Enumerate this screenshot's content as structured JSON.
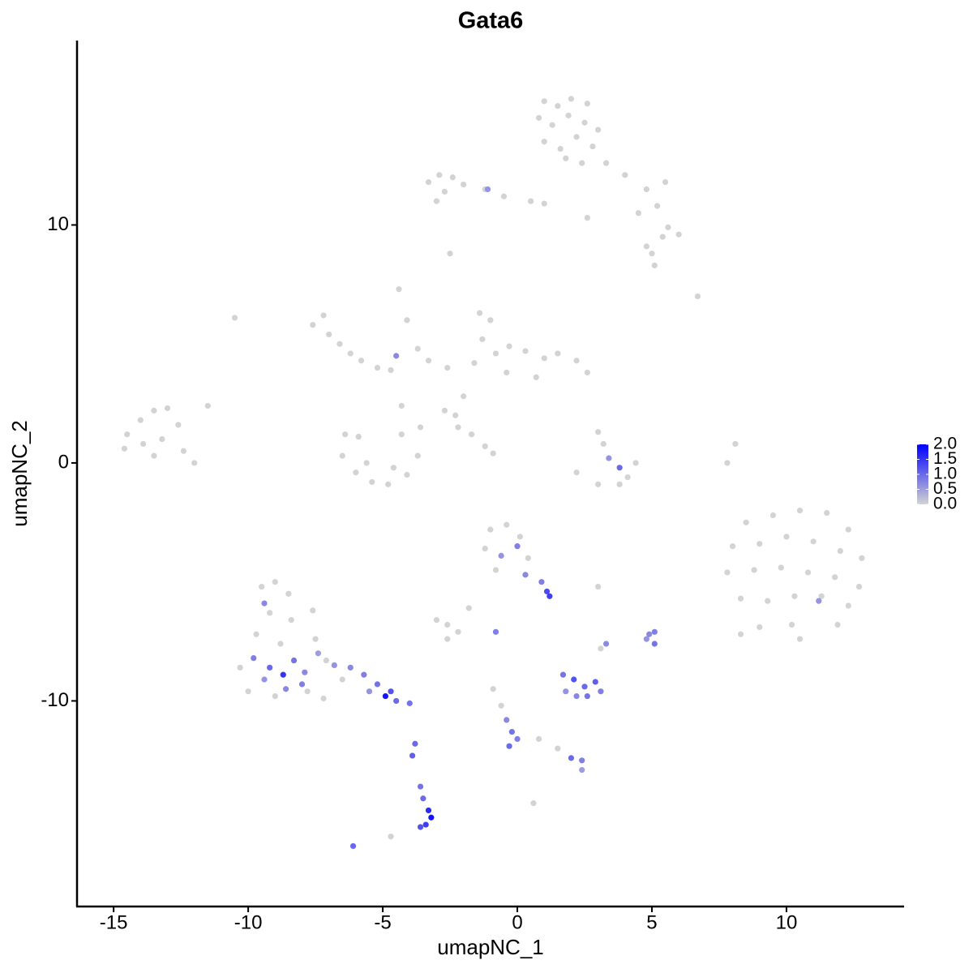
{
  "chart_data": {
    "type": "scatter",
    "title": "Gata6",
    "x_label": "umapNC_1",
    "y_label": "umapNC_2",
    "xlim": [
      -16.36,
      14.37
    ],
    "ylim": [
      -18.64,
      17.75
    ],
    "xticks": [
      -15,
      -10,
      -5,
      0,
      5,
      10
    ],
    "yticks": [
      -10,
      0,
      10
    ],
    "colors": [
      "#d3d3d3",
      "#0000ff"
    ],
    "color_lim": [
      0,
      2
    ],
    "color_ticks": [
      {
        "value": 0,
        "label": "0.0"
      },
      {
        "value": 0.5,
        "label": "0.5"
      },
      {
        "value": 1,
        "label": "1.0"
      },
      {
        "value": 1.5,
        "label": "1.5"
      },
      {
        "value": 2,
        "label": "2.0"
      }
    ],
    "x": [
      1.0,
      1.5,
      2.0,
      2.6,
      0.8,
      1.3,
      1.9,
      2.5,
      3.0,
      1.0,
      1.6,
      2.2,
      2.8,
      1.8,
      2.4,
      3.3,
      4.0,
      4.8,
      5.5,
      5.2,
      4.5,
      5.6,
      6.0,
      5.4,
      4.8,
      5.0,
      5.1,
      0.5,
      -0.5,
      -1.2,
      2.6,
      1.0,
      -3.3,
      -2.9,
      -2.4,
      -2.0,
      -2.7,
      -3.0,
      -1.1,
      -2.5,
      -14.5,
      -14.0,
      -13.5,
      -13.0,
      -12.6,
      -13.9,
      -13.2,
      -12.4,
      -14.6,
      -13.5,
      -12.0,
      -11.5,
      -10.5,
      -7.6,
      -7.2,
      -7.0,
      -6.6,
      -6.2,
      -5.8,
      -5.2,
      -4.7,
      -4.5,
      -4.4,
      -4.1,
      -3.7,
      -3.3,
      -4.3,
      -6.4,
      -6.5,
      -6.0,
      -5.4,
      -4.8,
      -4.1,
      -3.7,
      -3.6,
      -5.6,
      -4.6,
      -5.9,
      -4.3,
      -1.4,
      -1.0,
      -1.3,
      -0.8,
      -1.6,
      -0.3,
      0.3,
      1.0,
      1.5,
      2.2,
      2.6,
      0.7,
      -0.4,
      -2.0,
      -2.3,
      -2.6,
      -2.2,
      -1.7,
      -1.2,
      -0.9,
      -2.7,
      3.0,
      3.2,
      3.4,
      3.8,
      4.4,
      3.8,
      3.0,
      2.2,
      4.1,
      8.1,
      7.8,
      6.7,
      8.5,
      9.5,
      10.5,
      11.5,
      12.3,
      8.0,
      9.0,
      10.0,
      11.0,
      12.0,
      12.8,
      7.8,
      8.8,
      9.8,
      10.8,
      11.8,
      12.7,
      8.3,
      9.3,
      10.3,
      11.3,
      12.3,
      9.0,
      10.2,
      11.2,
      11.9,
      8.3,
      10.5,
      -9.5,
      -9.0,
      -8.5,
      -9.2,
      -8.4,
      -7.6,
      -9.7,
      -8.8,
      -7.5,
      -10.3,
      -7.1,
      -10.0,
      -9.0,
      -7.8,
      -7.2,
      -9.8,
      -9.2,
      -8.7,
      -8.3,
      -7.9,
      -9.4,
      -8.0,
      -9.4,
      -7.4,
      -8.6,
      -6.8,
      -6.2,
      -5.7,
      -5.2,
      -4.9,
      -4.5,
      -4.0,
      -5.5,
      -4.7,
      -6.5,
      -3.6,
      -3.5,
      -3.3,
      -3.2,
      -3.4,
      -3.6,
      -3.9,
      -3.8,
      -6.1,
      -4.7,
      -1.0,
      -0.4,
      0.1,
      -1.2,
      -0.6,
      0.0,
      0.4,
      -0.8,
      0.3,
      0.9,
      1.1,
      1.2,
      3.0,
      -3.0,
      -2.6,
      -2.2,
      -1.8,
      -0.8,
      -2.6,
      1.7,
      2.1,
      2.5,
      2.9,
      3.1,
      2.2,
      1.8,
      2.6,
      3.3,
      3.1,
      -0.9,
      -0.6,
      -0.4,
      -0.2,
      -0.3,
      0.0,
      0.8,
      1.5,
      0.6,
      2.0,
      2.4,
      2.4,
      4.9,
      5.1,
      5.1,
      4.8
    ],
    "y": [
      15.2,
      15.0,
      15.3,
      15.1,
      14.5,
      14.2,
      14.6,
      14.3,
      14.0,
      13.5,
      13.2,
      13.7,
      13.3,
      12.8,
      12.6,
      12.6,
      12.1,
      11.5,
      11.8,
      10.8,
      10.5,
      9.9,
      9.6,
      9.5,
      9.1,
      8.8,
      8.3,
      11.0,
      11.2,
      11.5,
      10.3,
      10.9,
      11.8,
      12.1,
      12.0,
      11.7,
      11.4,
      11.0,
      11.5,
      8.8,
      1.2,
      1.8,
      2.2,
      2.3,
      1.6,
      0.8,
      1.0,
      0.5,
      0.6,
      0.3,
      0.0,
      2.4,
      6.1,
      5.8,
      6.2,
      5.4,
      5.0,
      4.6,
      4.3,
      4.0,
      3.9,
      4.5,
      7.3,
      6.0,
      4.8,
      4.3,
      2.4,
      1.2,
      0.3,
      -0.4,
      -0.8,
      -0.9,
      -0.5,
      0.3,
      1.5,
      0.0,
      -0.2,
      1.1,
      1.2,
      6.3,
      6.0,
      5.2,
      4.6,
      4.2,
      4.9,
      4.7,
      4.4,
      4.6,
      4.3,
      3.8,
      3.6,
      3.8,
      2.8,
      2.0,
      4.0,
      1.5,
      1.2,
      0.7,
      0.4,
      2.2,
      1.3,
      0.8,
      0.2,
      -0.2,
      0.0,
      -0.9,
      -0.9,
      -0.4,
      -0.6,
      0.8,
      0.0,
      7.0,
      -2.5,
      -2.2,
      -2.0,
      -2.1,
      -2.8,
      -3.5,
      -3.4,
      -3.1,
      -3.3,
      -3.7,
      -4.0,
      -4.6,
      -4.5,
      -4.4,
      -4.6,
      -4.8,
      -5.2,
      -5.7,
      -5.8,
      -5.6,
      -5.6,
      -6.0,
      -6.9,
      -6.8,
      -5.8,
      -6.8,
      -7.2,
      -7.4,
      -5.2,
      -5.0,
      -5.5,
      -6.3,
      -6.6,
      -6.2,
      -7.2,
      -7.6,
      -7.4,
      -8.6,
      -8.3,
      -9.6,
      -9.8,
      -9.6,
      -9.9,
      -8.2,
      -8.6,
      -8.9,
      -8.3,
      -8.8,
      -9.1,
      -9.3,
      -5.9,
      -8.0,
      -9.5,
      -8.5,
      -8.6,
      -8.9,
      -9.3,
      -9.8,
      -10.0,
      -10.1,
      -9.6,
      -9.6,
      -9.1,
      -13.6,
      -14.1,
      -14.6,
      -14.9,
      -15.2,
      -15.3,
      -12.3,
      -11.8,
      -16.1,
      -15.7,
      -2.8,
      -2.6,
      -3.1,
      -3.6,
      -3.9,
      -3.5,
      -4.0,
      -4.5,
      -4.7,
      -5.0,
      -5.4,
      -5.6,
      -5.2,
      -6.6,
      -6.8,
      -7.1,
      -6.1,
      -7.1,
      -7.4,
      -8.9,
      -9.1,
      -9.4,
      -9.2,
      -9.6,
      -9.8,
      -9.6,
      -9.8,
      -7.6,
      -7.8,
      -9.5,
      -10.2,
      -10.8,
      -11.3,
      -11.9,
      -11.6,
      -11.6,
      -12.0,
      -14.3,
      -12.4,
      -12.5,
      -12.9,
      -7.2,
      -7.1,
      -7.6,
      -7.4
    ],
    "values": [
      0,
      0,
      0,
      0,
      0,
      0,
      0,
      0,
      0,
      0,
      0,
      0,
      0,
      0,
      0,
      0,
      0,
      0,
      0,
      0,
      0,
      0,
      0,
      0,
      0,
      0,
      0,
      0,
      0,
      0,
      0,
      0,
      0,
      0,
      0,
      0,
      0,
      0,
      0.6,
      0,
      0,
      0,
      0,
      0,
      0,
      0,
      0,
      0,
      0,
      0,
      0,
      0,
      0,
      0,
      0,
      0,
      0,
      0,
      0,
      0,
      0,
      0.7,
      0,
      0,
      0,
      0,
      0,
      0,
      0,
      0,
      0,
      0,
      0,
      0,
      0,
      0,
      0,
      0,
      0,
      0,
      0,
      0,
      0,
      0,
      0,
      0,
      0,
      0,
      0,
      0,
      0,
      0,
      0,
      0,
      0,
      0,
      0,
      0,
      0,
      0,
      0,
      0,
      0.6,
      1.0,
      0,
      0,
      0,
      0,
      0,
      0,
      0,
      0,
      0,
      0,
      0,
      0,
      0,
      0,
      0,
      0,
      0,
      0,
      0,
      0,
      0,
      0,
      0,
      0,
      0,
      0,
      0,
      0,
      0,
      0,
      0,
      0,
      0.6,
      0,
      0,
      0,
      0,
      0,
      0,
      0,
      0,
      0,
      0,
      0,
      0,
      0,
      0,
      0,
      0,
      0,
      0,
      0.8,
      1.0,
      1.5,
      0.9,
      0.7,
      0.6,
      0.8,
      0.7,
      0.5,
      0.7,
      0.6,
      0.7,
      0.8,
      0.9,
      1.8,
      1.0,
      0.9,
      0.6,
      1.2,
      0,
      0.9,
      1.0,
      1.6,
      1.8,
      1.4,
      1.2,
      1.1,
      1.0,
      1.0,
      0,
      0,
      0,
      0,
      0,
      0.6,
      0.8,
      0,
      0,
      0.7,
      0.8,
      1.3,
      1.4,
      0,
      0,
      0,
      0,
      0,
      0.8,
      0,
      0.9,
      1.2,
      1.0,
      1.1,
      0.8,
      0.7,
      0.6,
      0.9,
      0.7,
      0,
      0,
      0,
      0.7,
      0.9,
      1.0,
      0.8,
      0,
      0,
      0,
      1.0,
      0.8,
      0.5,
      0.7,
      0.8,
      0.9,
      0.6
    ]
  }
}
